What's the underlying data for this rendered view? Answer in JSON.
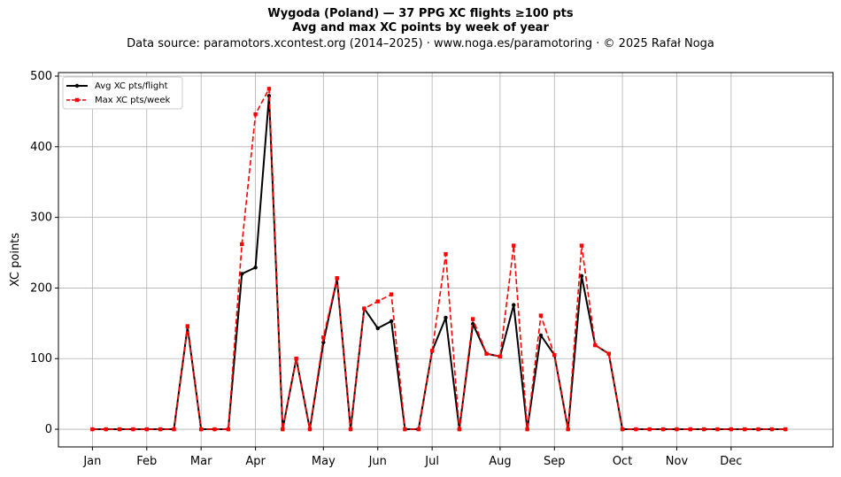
{
  "title_line1": "Wygoda (Poland)  —  37 PPG XC flights ≥100 pts",
  "title_line2": "Avg and max XC points by week of year",
  "subtitle": "Data source: paramotors.xcontest.org (2014–2025)  ·  www.noga.es/paramotoring  ·  © 2025 Rafał Noga",
  "chart_data": {
    "type": "line",
    "title": "Wygoda (Poland)  —  37 PPG XC flights ≥100 pts",
    "subtitle": "Avg and max XC points by week of year",
    "xlabel": "",
    "ylabel": "XC points",
    "xlim": [
      -2.5,
      54.5
    ],
    "ylim": [
      -25,
      505
    ],
    "x_ticks": [
      {
        "label": "Jan",
        "x": 0
      },
      {
        "label": "Feb",
        "x": 4
      },
      {
        "label": "Mar",
        "x": 8
      },
      {
        "label": "Apr",
        "x": 12
      },
      {
        "label": "May",
        "x": 17
      },
      {
        "label": "Jun",
        "x": 21
      },
      {
        "label": "Jul",
        "x": 25
      },
      {
        "label": "Aug",
        "x": 30
      },
      {
        "label": "Sep",
        "x": 34
      },
      {
        "label": "Oct",
        "x": 39
      },
      {
        "label": "Nov",
        "x": 43
      },
      {
        "label": "Dec",
        "x": 47
      }
    ],
    "y_ticks": [
      0,
      100,
      200,
      300,
      400,
      500
    ],
    "grid": true,
    "legend_position": "top-left",
    "x": [
      0,
      1,
      2,
      3,
      4,
      5,
      6,
      7,
      8,
      9,
      10,
      11,
      12,
      13,
      14,
      15,
      16,
      17,
      18,
      19,
      20,
      21,
      22,
      23,
      24,
      25,
      26,
      27,
      28,
      29,
      30,
      31,
      32,
      33,
      34,
      35,
      36,
      37,
      38,
      39,
      40,
      41,
      42,
      43,
      44,
      45,
      46,
      47,
      48,
      49,
      50,
      51
    ],
    "series": [
      {
        "name": "Avg XC pts/flight",
        "color": "#000000",
        "style": "solid-circle",
        "values": [
          0,
          0,
          0,
          0,
          0,
          0,
          0,
          145,
          0,
          0,
          0,
          220,
          229,
          472,
          0,
          100,
          0,
          123,
          213,
          0,
          171,
          143,
          153,
          0,
          0,
          111,
          158,
          0,
          149,
          107,
          103,
          176,
          0,
          133,
          105,
          0,
          217,
          119,
          107,
          0,
          0,
          0,
          0,
          0,
          0,
          0,
          0,
          0,
          0,
          0,
          0,
          0
        ]
      },
      {
        "name": "Max XC pts/week",
        "color": "#ff0000",
        "style": "dashed-square",
        "values": [
          0,
          0,
          0,
          0,
          0,
          0,
          0,
          146,
          0,
          0,
          0,
          262,
          446,
          482,
          0,
          100,
          0,
          130,
          214,
          0,
          171,
          181,
          191,
          0,
          0,
          111,
          248,
          0,
          156,
          107,
          103,
          260,
          0,
          161,
          105,
          0,
          260,
          119,
          107,
          0,
          0,
          0,
          0,
          0,
          0,
          0,
          0,
          0,
          0,
          0,
          0,
          0
        ]
      }
    ]
  }
}
